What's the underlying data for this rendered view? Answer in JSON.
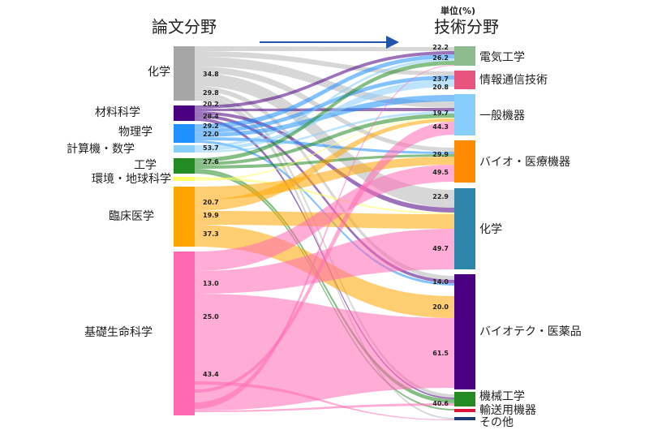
{
  "chart_data": {
    "type": "sankey",
    "left_header": "論文分野",
    "right_header": "技術分野",
    "unit": "単位(%)",
    "sources": [
      {
        "name": "化学",
        "color": "#a6a6a6"
      },
      {
        "name": "材料科学",
        "color": "#4b0082"
      },
      {
        "name": "物理学",
        "color": "#1e90ff"
      },
      {
        "name": "計算機・数学",
        "color": "#87cefa"
      },
      {
        "name": "工学",
        "color": "#228b22"
      },
      {
        "name": "環境・地球科学",
        "color": "#ffff66"
      },
      {
        "name": "臨床医学",
        "color": "#ffa500"
      },
      {
        "name": "基礎生命科学",
        "color": "#ff69b4"
      }
    ],
    "targets": [
      {
        "name": "電気工学",
        "color": "#8fbc8f"
      },
      {
        "name": "情報通信技術",
        "color": "#e75480"
      },
      {
        "name": "一般機器",
        "color": "#87cefa"
      },
      {
        "name": "バイオ・医療機器",
        "color": "#ff8c00"
      },
      {
        "name": "化学",
        "color": "#2e86ab"
      },
      {
        "name": "バイオテク・医薬品",
        "color": "#4b0082"
      },
      {
        "name": "機械工学",
        "color": "#228b22"
      },
      {
        "name": "輸送用機器",
        "color": "#dc143c"
      },
      {
        "name": "その他",
        "color": "#1f3b73"
      }
    ],
    "source_labels": [
      {
        "text": "34.8",
        "source": "化学"
      },
      {
        "text": "29.8",
        "source": "化学"
      },
      {
        "text": "20.2",
        "source": "材料科学"
      },
      {
        "text": "28.4",
        "source": "材料科学"
      },
      {
        "text": "29.2",
        "source": "物理学"
      },
      {
        "text": "22.0",
        "source": "物理学"
      },
      {
        "text": "53.7",
        "source": "計算機・数学"
      },
      {
        "text": "27.6",
        "source": "工学"
      },
      {
        "text": "20.7",
        "source": "臨床医学"
      },
      {
        "text": "19.9",
        "source": "臨床医学"
      },
      {
        "text": "37.3",
        "source": "臨床医学"
      },
      {
        "text": "13.0",
        "source": "基礎生命科学"
      },
      {
        "text": "25.0",
        "source": "基礎生命科学"
      },
      {
        "text": "43.4",
        "source": "基礎生命科学"
      }
    ],
    "target_labels": [
      {
        "text": "22.2",
        "target": "電気工学"
      },
      {
        "text": "26.2",
        "target": "電気工学"
      },
      {
        "text": "23.7",
        "target": "情報通信技術"
      },
      {
        "text": "20.8",
        "target": "情報通信技術"
      },
      {
        "text": "19.7",
        "target": "一般機器"
      },
      {
        "text": "44.3",
        "target": "一般機器"
      },
      {
        "text": "29.9",
        "target": "バイオ・医療機器"
      },
      {
        "text": "49.5",
        "target": "バイオ・医療機器"
      },
      {
        "text": "22.9",
        "target": "化学"
      },
      {
        "text": "49.7",
        "target": "化学"
      },
      {
        "text": "14.0",
        "target": "バイオテク・医薬品"
      },
      {
        "text": "20.0",
        "target": "バイオテク・医薬品"
      },
      {
        "text": "61.5",
        "target": "バイオテク・医薬品"
      },
      {
        "text": "40.6",
        "target": "機械工学"
      }
    ]
  }
}
